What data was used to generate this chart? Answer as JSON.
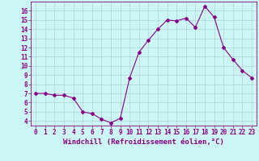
{
  "x": [
    0,
    1,
    2,
    3,
    4,
    5,
    6,
    7,
    8,
    9,
    10,
    11,
    12,
    13,
    14,
    15,
    16,
    17,
    18,
    19,
    20,
    21,
    22,
    23
  ],
  "y": [
    7.0,
    7.0,
    6.8,
    6.8,
    6.5,
    5.0,
    4.8,
    4.2,
    3.8,
    4.3,
    8.7,
    11.5,
    12.8,
    14.0,
    15.0,
    14.9,
    15.2,
    14.2,
    16.5,
    15.3,
    12.0,
    10.7,
    9.5,
    8.7
  ],
  "line_color": "#880088",
  "marker": "D",
  "marker_size": 2.0,
  "bg_color": "#ccf5f5",
  "grid_color": "#aacccc",
  "xlabel": "Windchill (Refroidissement éolien,°C)",
  "xlabel_color": "#880088",
  "xlabel_fontsize": 6.5,
  "ylabel_ticks": [
    4,
    5,
    6,
    7,
    8,
    9,
    10,
    11,
    12,
    13,
    14,
    15,
    16
  ],
  "xlim": [
    -0.5,
    23.5
  ],
  "ylim": [
    3.5,
    17.0
  ],
  "tick_fontsize": 5.5,
  "tick_color": "#880088",
  "spine_color": "#880088"
}
